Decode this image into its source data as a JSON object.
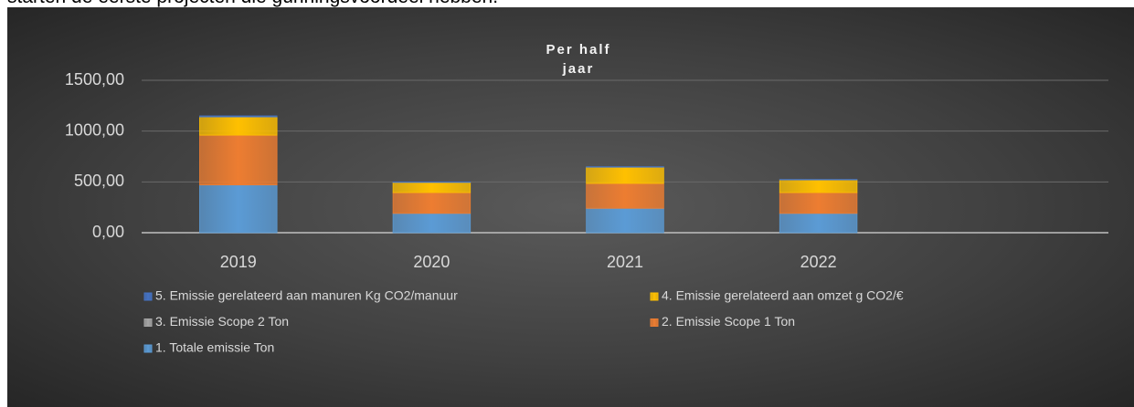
{
  "text": "starten de eerste projecten die gunningsvoordeel hebben.",
  "chart_data": {
    "type": "stacked_bar",
    "title": "Per half jaar",
    "categories": [
      "2019",
      "2020",
      "2021",
      "2022",
      null
    ],
    "series": [
      {
        "name": "1. Totale emissie Ton",
        "color": "#5b9bd5",
        "values": [
          470,
          190,
          240,
          190,
          null
        ]
      },
      {
        "name": "2. Emissie Scope 1 Ton",
        "color": "#ed7d31",
        "values": [
          490,
          205,
          245,
          205,
          null
        ]
      },
      {
        "name": "3. Emissie Scope 2 Ton",
        "color": "#a5a5a5",
        "values": [
          0,
          0,
          0,
          0,
          null
        ]
      },
      {
        "name": "4. Emissie gerelateerd aan omzet g CO2/€",
        "color": "#ffc000",
        "values": [
          180,
          100,
          160,
          125,
          null
        ]
      },
      {
        "name": "5. Emissie gerelateerd aan manuren Kg CO2/manuur",
        "color": "#4472c4",
        "values": [
          10,
          5,
          5,
          5,
          null
        ]
      }
    ],
    "legend_order": [
      4,
      3,
      2,
      1,
      0
    ],
    "ylim": [
      0,
      1500
    ],
    "yticks": [
      {
        "value": 0,
        "label": "0,00"
      },
      {
        "value": 500,
        "label": "500,00"
      },
      {
        "value": 1000,
        "label": "1000,00"
      },
      {
        "value": 1500,
        "label": "1500,00"
      }
    ],
    "grid": true
  }
}
